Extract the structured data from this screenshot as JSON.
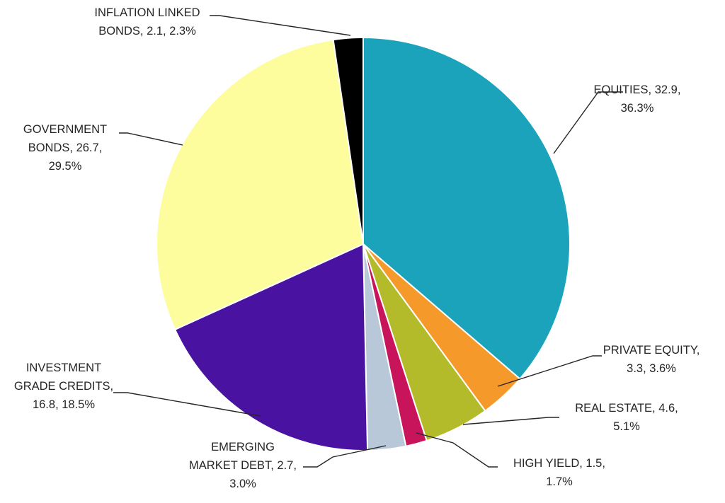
{
  "chart_data": {
    "type": "pie",
    "title": "",
    "legend": "none",
    "slices": [
      {
        "label": "EQUITIES",
        "value": 32.9,
        "percent": "36.3%",
        "color": "#1aa3ba",
        "label_text": [
          "EQUITIES, 32.9,",
          "36.3%"
        ]
      },
      {
        "label": "PRIVATE EQUITY",
        "value": 3.3,
        "percent": "3.6%",
        "color": "#f59a2a",
        "label_text": [
          "PRIVATE EQUITY,",
          "3.3, 3.6%"
        ]
      },
      {
        "label": "REAL ESTATE",
        "value": 4.6,
        "percent": "5.1%",
        "color": "#b4bb2a",
        "label_text": [
          "REAL ESTATE, 4.6,",
          "5.1%"
        ]
      },
      {
        "label": "HIGH YIELD",
        "value": 1.5,
        "percent": "1.7%",
        "color": "#c8145a",
        "label_text": [
          "HIGH YIELD, 1.5,",
          "1.7%"
        ]
      },
      {
        "label": "EMERGING MARKET DEBT",
        "value": 2.7,
        "percent": "3.0%",
        "color": "#b8c8d8",
        "label_text": [
          "EMERGING",
          "MARKET DEBT, 2.7,",
          "3.0%"
        ]
      },
      {
        "label": "INVESTMENT GRADE CREDITS",
        "value": 16.8,
        "percent": "18.5%",
        "color": "#4a12a0",
        "label_text": [
          "INVESTMENT",
          "GRADE CREDITS,",
          "16.8, 18.5%"
        ]
      },
      {
        "label": "GOVERNMENT BONDS",
        "value": 26.7,
        "percent": "29.5%",
        "color": "#fdfd9e",
        "label_text": [
          "GOVERNMENT",
          "BONDS, 26.7,",
          "29.5%"
        ]
      },
      {
        "label": "INFLATION LINKED BONDS",
        "value": 2.1,
        "percent": "2.3%",
        "color": "#000000",
        "label_text": [
          "INFLATION LINKED",
          "BONDS, 2.1, 2.3%"
        ]
      }
    ]
  }
}
